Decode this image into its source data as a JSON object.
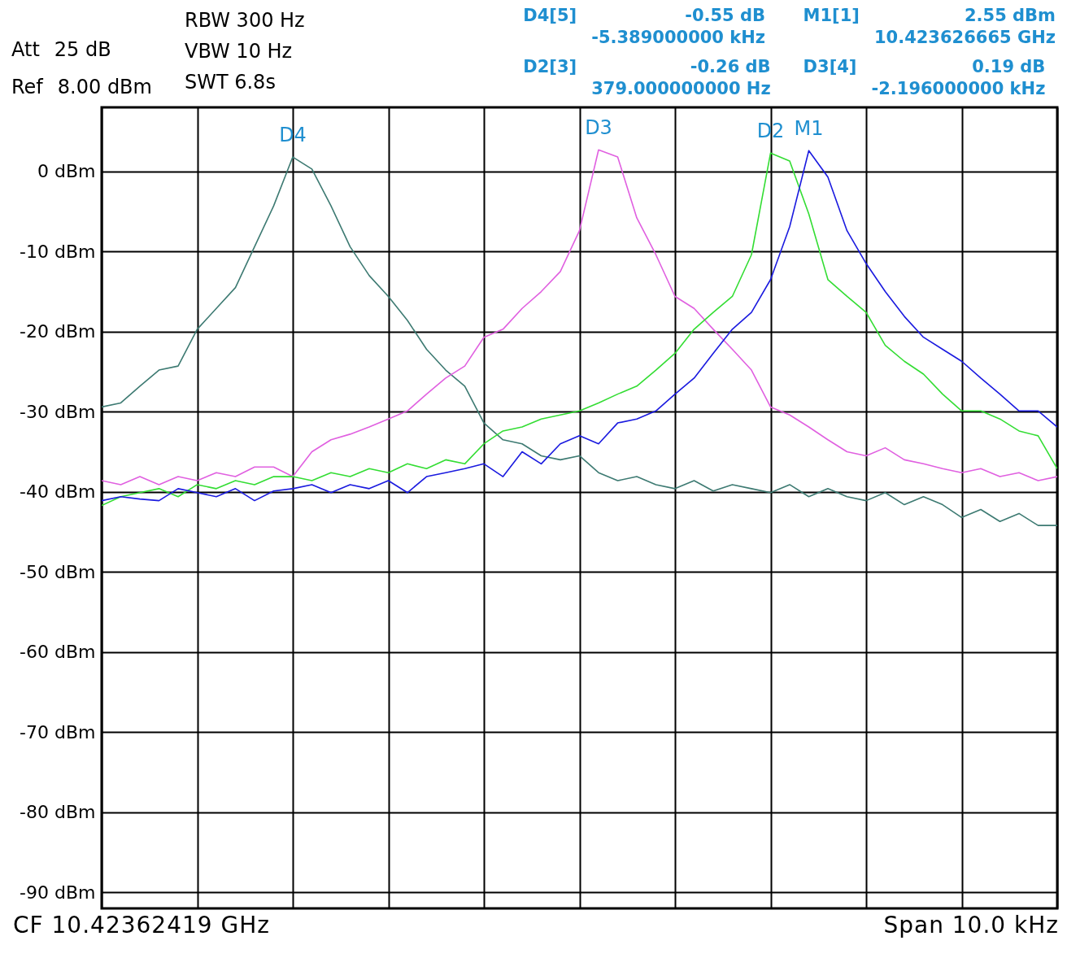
{
  "chart_data": {
    "type": "line",
    "ylim": [
      -92,
      8
    ],
    "categories": [
      null,
      null,
      null,
      null,
      null,
      null,
      null,
      null,
      null,
      null,
      null,
      null,
      null,
      null,
      null,
      null,
      null,
      null,
      null,
      null,
      null,
      null,
      null,
      null,
      null,
      null,
      null,
      null,
      null,
      null,
      null,
      null,
      null,
      null,
      null,
      null,
      null,
      null,
      null,
      null,
      null,
      null,
      null,
      null,
      null,
      null,
      null,
      null,
      null,
      null,
      null
    ],
    "yticks": [
      {
        "value": 0,
        "label": "0 dBm"
      },
      {
        "value": -10,
        "label": "-10 dBm"
      },
      {
        "value": -20,
        "label": "-20 dBm"
      },
      {
        "value": -30,
        "label": "-30 dBm"
      },
      {
        "value": -40,
        "label": "-40 dBm"
      },
      {
        "value": -50,
        "label": "-50 dBm"
      },
      {
        "value": -60,
        "label": "-60 dBm"
      },
      {
        "value": -70,
        "label": "-70 dBm"
      },
      {
        "value": -80,
        "label": "-80 dBm"
      },
      {
        "value": -90,
        "label": "-90 dBm"
      }
    ],
    "tick_labels": "y",
    "grid": true,
    "line_style": "solid",
    "series": [
      {
        "color": "#3d7a72",
        "values": [
          -29.4,
          -28.9,
          -26.8,
          -24.8,
          -24.3,
          -19.7,
          -17.1,
          -14.5,
          -9.4,
          -4.3,
          1.8,
          0.3,
          -4.3,
          -9.4,
          -13,
          -15.6,
          -18.6,
          -22.2,
          -24.8,
          -26.8,
          -31.4,
          -33.5,
          -34,
          -35.5,
          -36,
          -35.5,
          -37.6,
          -38.6,
          -38.1,
          -39.1,
          -39.6,
          -38.6,
          -39.9,
          -39.1,
          -39.6,
          -40.1,
          -39.1,
          -40.6,
          -39.6,
          -40.6,
          -41.1,
          -40.1,
          -41.6,
          -40.6,
          -41.6,
          -43.2,
          -42.2,
          -43.7,
          -42.7,
          -44.2,
          -44.2
        ]
      },
      {
        "color": "#e060e0",
        "values": [
          -38.6,
          -39.1,
          -38.1,
          -39.1,
          -38.1,
          -38.6,
          -37.6,
          -38.1,
          -36.9,
          -36.9,
          -38.1,
          -35,
          -33.5,
          -32.8,
          -31.9,
          -30.9,
          -29.9,
          -27.8,
          -25.8,
          -24.3,
          -20.7,
          -19.7,
          -17.1,
          -15,
          -12.5,
          -7.4,
          2.7,
          1.8,
          -5.8,
          -10.4,
          -15.6,
          -17.1,
          -19.7,
          -22.2,
          -24.8,
          -29.4,
          -30.4,
          -31.9,
          -33.5,
          -35,
          -35.5,
          -34.5,
          -36,
          -36.5,
          -37.1,
          -37.6,
          -37.1,
          -38.1,
          -37.6,
          -38.6,
          -38.1
        ]
      },
      {
        "color": "#33dd33",
        "values": [
          -41.7,
          -40.6,
          -40.1,
          -39.6,
          -40.6,
          -39.1,
          -39.6,
          -38.6,
          -39.1,
          -38.1,
          -38.1,
          -38.6,
          -37.6,
          -38.1,
          -37.1,
          -37.6,
          -36.5,
          -37.1,
          -36,
          -36.5,
          -34,
          -32.4,
          -31.9,
          -30.9,
          -30.4,
          -29.9,
          -28.9,
          -27.8,
          -26.8,
          -24.8,
          -22.7,
          -19.7,
          -17.6,
          -15.6,
          -10.4,
          2.3,
          1.3,
          -5.3,
          -13.5,
          -15.6,
          -17.6,
          -21.7,
          -23.7,
          -25.3,
          -27.8,
          -29.9,
          -29.9,
          -30.9,
          -32.4,
          -33,
          -37.1
        ]
      },
      {
        "color": "#1a1adf",
        "values": [
          -41.1,
          -40.6,
          -40.9,
          -41.1,
          -39.6,
          -40.1,
          -40.6,
          -39.6,
          -41.1,
          -39.9,
          -39.6,
          -39.1,
          -40.1,
          -39.1,
          -39.6,
          -38.6,
          -40.1,
          -38.1,
          -37.6,
          -37.1,
          -36.5,
          -38.1,
          -35,
          -36.5,
          -34,
          -33,
          -34,
          -31.4,
          -30.9,
          -29.9,
          -27.8,
          -25.8,
          -22.7,
          -19.7,
          -17.6,
          -13.5,
          -6.9,
          2.6,
          -0.7,
          -7.4,
          -11.5,
          -15,
          -18.1,
          -20.7,
          -22.2,
          -23.7,
          -25.8,
          -27.8,
          -29.9,
          -29.9,
          -31.9
        ]
      }
    ],
    "annotations": [
      "Att",
      "25 dB",
      "Ref",
      "8.00 dBm",
      "RBW 300 Hz",
      "VBW 10 Hz",
      "SWT 6.8s",
      "D4[5]",
      "-0.55 dB",
      "-5.389000000 kHz",
      "M1[1]",
      "2.55 dBm",
      "10.423626665 GHz",
      "D2[3]",
      "-0.26 dB",
      "379.000000000 Hz",
      "D3[4]",
      "0.19 dB",
      "-2.196000000 kHz",
      "CF 10.42362419 GHz",
      "Span 10.0 kHz",
      "D4",
      "D3",
      "D2",
      "M1"
    ]
  }
}
